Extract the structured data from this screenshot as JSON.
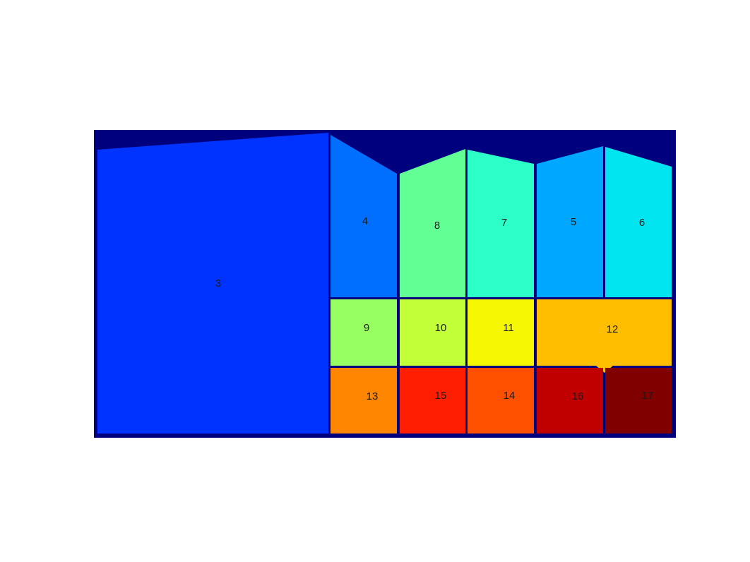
{
  "figure": {
    "background_color": "#00007f",
    "regions": [
      {
        "id": "region-3",
        "label": "3",
        "color": "#0033ff"
      },
      {
        "id": "region-4",
        "label": "4",
        "color": "#006fff"
      },
      {
        "id": "region-8",
        "label": "8",
        "color": "#62ff95"
      },
      {
        "id": "region-7",
        "label": "7",
        "color": "#2dffc9"
      },
      {
        "id": "region-5",
        "label": "5",
        "color": "#00a7ff"
      },
      {
        "id": "region-6",
        "label": "6",
        "color": "#00e5ef"
      },
      {
        "id": "region-9",
        "label": "9",
        "color": "#97ff62"
      },
      {
        "id": "region-10",
        "label": "10",
        "color": "#c2ff38"
      },
      {
        "id": "region-11",
        "label": "11",
        "color": "#f5f800"
      },
      {
        "id": "region-12",
        "label": "12",
        "color": "#ffbf00"
      },
      {
        "id": "region-13",
        "label": "13",
        "color": "#ff8600"
      },
      {
        "id": "region-15",
        "label": "15",
        "color": "#ff1e00"
      },
      {
        "id": "region-14",
        "label": "14",
        "color": "#ff5000"
      },
      {
        "id": "region-16",
        "label": "16",
        "color": "#c00000"
      },
      {
        "id": "region-17",
        "label": "17",
        "color": "#800000"
      }
    ]
  }
}
